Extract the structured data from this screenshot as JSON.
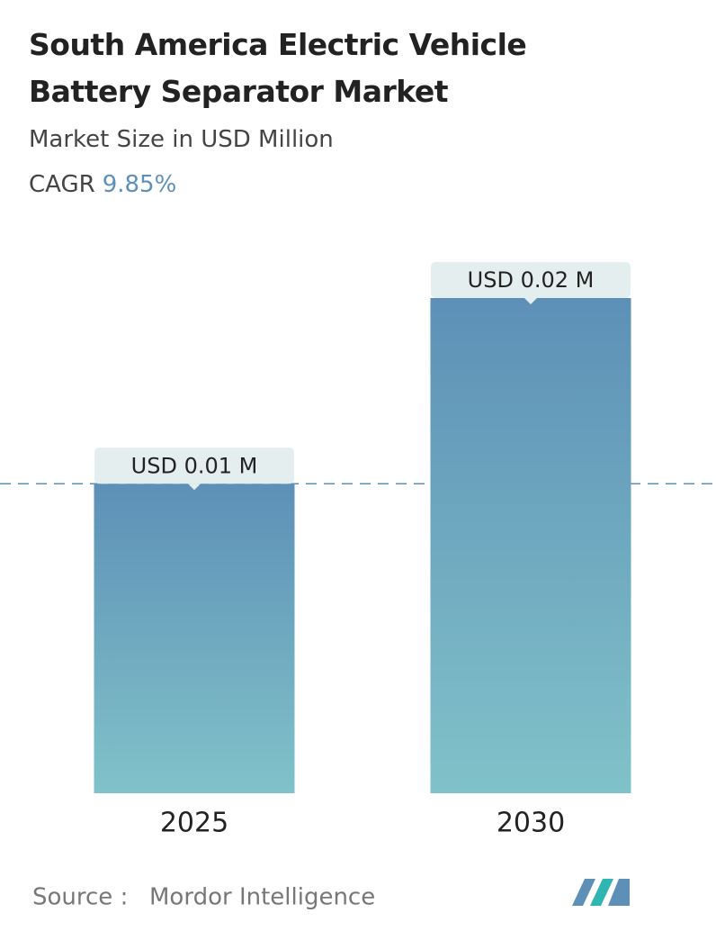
{
  "chart_data": {
    "type": "bar",
    "title": "South America Electric Vehicle Battery Separator Market",
    "subtitle": "Market Size in USD Million",
    "cagr_label": "CAGR",
    "cagr": "9.85%",
    "categories": [
      "2025",
      "2030"
    ],
    "values": [
      0.0125,
      0.02
    ],
    "value_labels": [
      "USD 0.01 M",
      "USD 0.02 M"
    ],
    "ylim": [
      0,
      0.02
    ],
    "colors": [
      "#5e90b7",
      "#80c2c9"
    ],
    "reference_line": true,
    "source_label": "Source :",
    "source": "Mordor Intelligence"
  }
}
